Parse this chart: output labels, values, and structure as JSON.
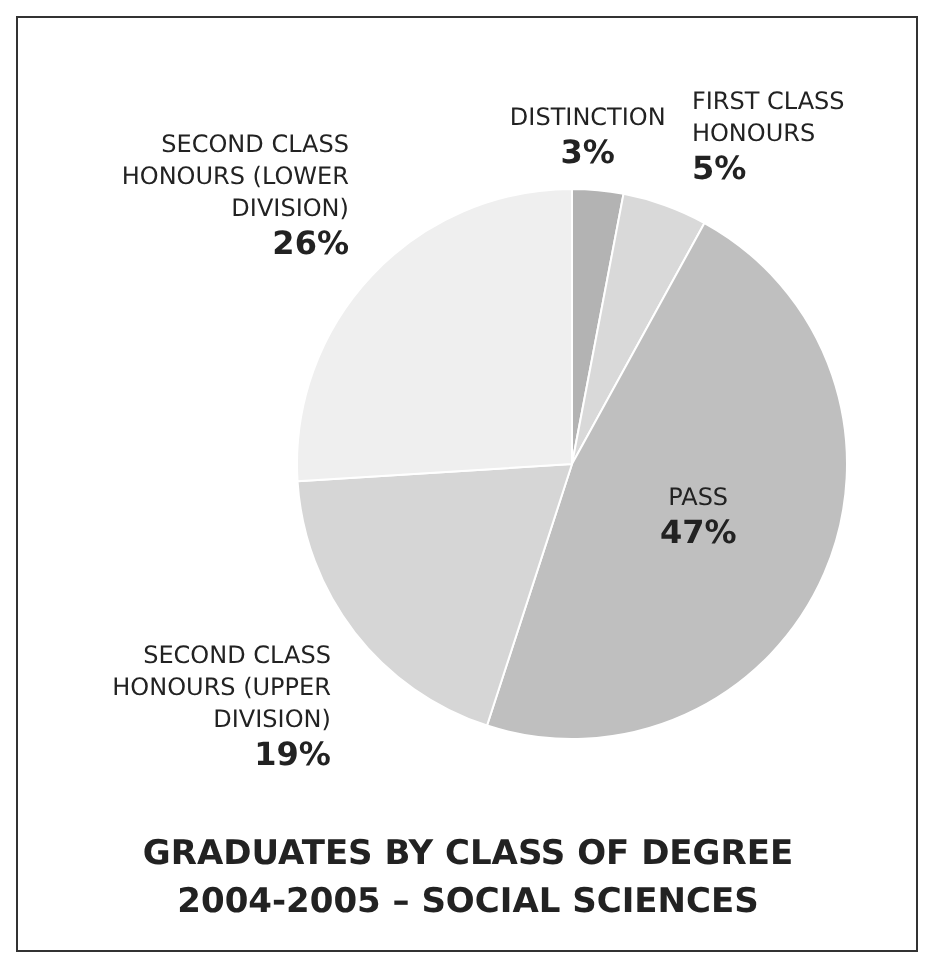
{
  "chart_data": {
    "type": "pie",
    "title": "GRADUATES BY CLASS OF DEGREE 2004-2005 – SOCIAL SCIENCES",
    "categories": [
      "DISTINCTION",
      "FIRST CLASS HONOURS",
      "PASS",
      "SECOND CLASS HONOURS (UPPER DIVISION)",
      "SECOND CLASS HONOURS (LOWER DIVISION)"
    ],
    "values": [
      3,
      5,
      47,
      19,
      26
    ],
    "value_labels": [
      "3%",
      "5%",
      "47%",
      "19%",
      "26%"
    ],
    "colors": [
      "#b3b3b3",
      "#d9d9d9",
      "#bfbfbf",
      "#d6d6d6",
      "#efefef"
    ],
    "legend": false
  }
}
